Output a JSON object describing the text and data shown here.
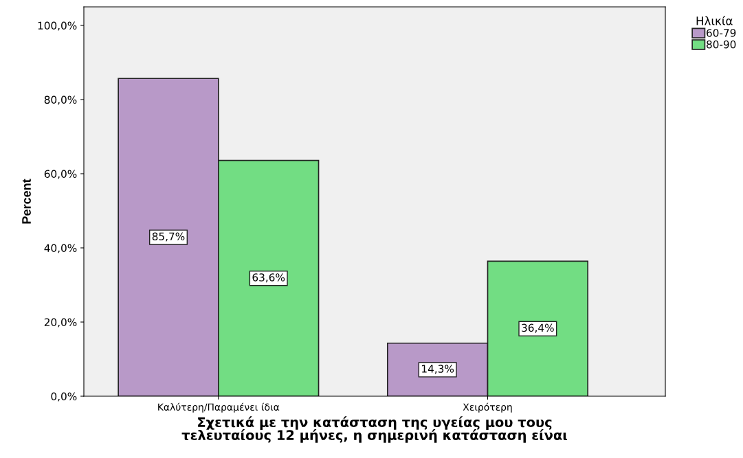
{
  "chart_data": {
    "type": "bar",
    "xlabel": "Σχετικά με την κατάσταση της υγείας μου τους\nτελευταίους 12 μήνες, η σημερινή κατάσταση είναι",
    "ylabel": "Percent",
    "legend_title": "Ηλικία",
    "categories": [
      "Καλύτερη/Παραμένει ίδια",
      "Χειρότερη"
    ],
    "series": [
      {
        "name": "60-79",
        "color": "#b899c8",
        "values": [
          85.7,
          14.3
        ],
        "value_labels": [
          "85,7%",
          "14,3%"
        ]
      },
      {
        "name": "80-90",
        "color": "#72dd83",
        "values": [
          63.6,
          36.4
        ],
        "value_labels": [
          "63,6%",
          "36,4%"
        ]
      }
    ],
    "ylim": [
      0,
      105
    ],
    "yticks": [
      {
        "value": 0,
        "label": "0,0%"
      },
      {
        "value": 20,
        "label": "20,0%"
      },
      {
        "value": 40,
        "label": "40,0%"
      },
      {
        "value": 60,
        "label": "60,0%"
      },
      {
        "value": 80,
        "label": "80,0%"
      },
      {
        "value": 100,
        "label": "100,0%"
      }
    ],
    "grid": false,
    "legend": "top right"
  }
}
